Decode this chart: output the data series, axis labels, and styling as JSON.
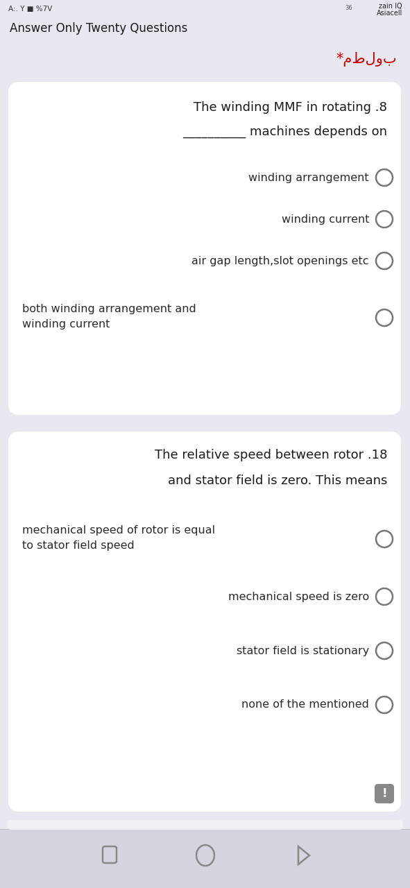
{
  "bg_color": "#e8e8f0",
  "card_color": "#ffffff",
  "header_text": "Answer Only Twenty Questions",
  "matlub_text": "*مطلوب",
  "matlub_color": "#cc0000",
  "q1_title_line1": "The winding MMF in rotating .8",
  "q1_title_line2": "__________ machines depends on",
  "q1_options": [
    "winding arrangement",
    "winding current",
    "air gap length,slot openings etc",
    "both winding arrangement and\nwinding current"
  ],
  "q2_title_line1": "The relative speed between rotor .18",
  "q2_title_line2": "and stator field is zero. This means",
  "q2_options": [
    "mechanical speed of rotor is equal\nto stator field speed",
    "mechanical speed is zero",
    "stator field is stationary",
    "none of the mentioned"
  ],
  "text_color": "#1a1a1a",
  "option_text_color": "#2a2a2a",
  "circle_color": "#777777",
  "nav_color": "#888888",
  "exclaim_bg": "#888888",
  "font_size_header": 12,
  "font_size_question": 13,
  "font_size_option": 11.5,
  "status_left": "A:. Y ■ %7V",
  "status_right1": "zain IQ",
  "status_right2": "Asiacell"
}
